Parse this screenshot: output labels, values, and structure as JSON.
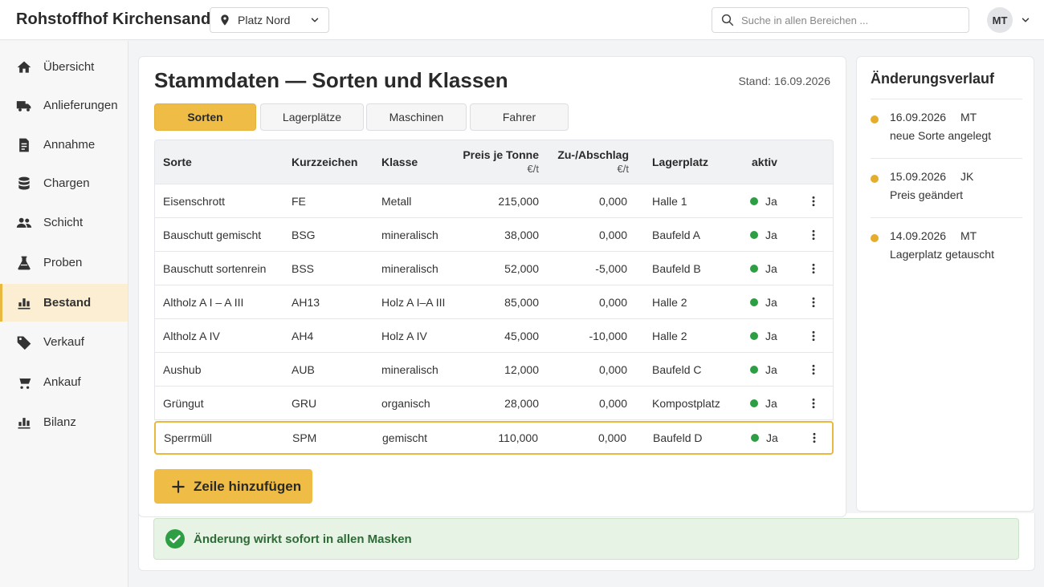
{
  "app": {
    "title": "Rohstoffhof Kirchensand"
  },
  "location": {
    "selected": "Platz Nord"
  },
  "search": {
    "placeholder": "Suche in allen Bereichen ..."
  },
  "user": {
    "initials": "MT"
  },
  "sidebar": {
    "items": [
      {
        "label": "Übersicht",
        "icon": "home-icon"
      },
      {
        "label": "Anlieferungen",
        "icon": "truck-icon"
      },
      {
        "label": "Annahme",
        "icon": "document-icon"
      },
      {
        "label": "Chargen",
        "icon": "database-icon"
      },
      {
        "label": "Schicht",
        "icon": "people-icon"
      },
      {
        "label": "Proben",
        "icon": "flask-icon"
      },
      {
        "label": "Bestand",
        "icon": "bar-chart-icon",
        "active": true
      },
      {
        "label": "Verkauf",
        "icon": "tag-icon"
      },
      {
        "label": "Ankauf",
        "icon": "cart-icon"
      },
      {
        "label": "Bilanz",
        "icon": "bar-chart-icon"
      }
    ]
  },
  "main": {
    "title": "Stammdaten — Sorten und Klassen",
    "stand_label": "Stand:",
    "stand_date": "16.09.2026",
    "tabs": [
      {
        "label": "Sorten",
        "active": true
      },
      {
        "label": "Lagerplätze"
      },
      {
        "label": "Maschinen"
      },
      {
        "label": "Fahrer"
      }
    ],
    "table": {
      "headers": {
        "sorte": "Sorte",
        "kurz": "Kurzzeichen",
        "klasse": "Klasse",
        "preis": "Preis je Tonne",
        "preis_unit": "€/t",
        "zuab": "Zu-/Abschlag",
        "zuab_unit": "€/t",
        "lager": "Lagerplatz",
        "aktiv": "aktiv"
      },
      "rows": [
        {
          "sorte": "Eisenschrott",
          "kurz": "FE",
          "klasse": "Metall",
          "preis": "215,000",
          "zuab": "0,000",
          "lager": "Halle 1",
          "aktiv": "Ja"
        },
        {
          "sorte": "Bauschutt gemischt",
          "kurz": "BSG",
          "klasse": "mineralisch",
          "preis": "38,000",
          "zuab": "0,000",
          "lager": "Baufeld A",
          "aktiv": "Ja"
        },
        {
          "sorte": "Bauschutt sortenrein",
          "kurz": "BSS",
          "klasse": "mineralisch",
          "preis": "52,000",
          "zuab": "-5,000",
          "lager": "Baufeld B",
          "aktiv": "Ja"
        },
        {
          "sorte": "Altholz A I – A III",
          "kurz": "AH13",
          "klasse": "Holz A I–A III",
          "preis": "85,000",
          "zuab": "0,000",
          "lager": "Halle 2",
          "aktiv": "Ja"
        },
        {
          "sorte": "Altholz A IV",
          "kurz": "AH4",
          "klasse": "Holz A IV",
          "preis": "45,000",
          "zuab": "-10,000",
          "lager": "Halle 2",
          "aktiv": "Ja"
        },
        {
          "sorte": "Aushub",
          "kurz": "AUB",
          "klasse": "mineralisch",
          "preis": "12,000",
          "zuab": "0,000",
          "lager": "Baufeld C",
          "aktiv": "Ja"
        },
        {
          "sorte": "Grüngut",
          "kurz": "GRU",
          "klasse": "organisch",
          "preis": "28,000",
          "zuab": "0,000",
          "lager": "Kompostplatz",
          "aktiv": "Ja"
        },
        {
          "sorte": "Sperrmüll",
          "kurz": "SPM",
          "klasse": "gemischt",
          "preis": "110,000",
          "zuab": "0,000",
          "lager": "Baufeld D",
          "aktiv": "Ja",
          "selected": true
        }
      ]
    },
    "add_button": "Zeile hinzufügen"
  },
  "notice": {
    "text": "Änderung wirkt sofort in allen Masken"
  },
  "history": {
    "title": "Änderungsverlauf",
    "entries": [
      {
        "date": "16.09.2026",
        "user": "MT",
        "text": "neue Sorte angelegt"
      },
      {
        "date": "15.09.2026",
        "user": "JK",
        "text": "Preis geändert"
      },
      {
        "date": "14.09.2026",
        "user": "MT",
        "text": "Lagerplatz getauscht"
      }
    ]
  },
  "colors": {
    "accent": "#efbd45",
    "active_nav_bg": "#fbeed3",
    "status_green": "#2e9e44",
    "history_bullet": "#e5ad2c",
    "notice_bg": "#e6f3e5"
  }
}
